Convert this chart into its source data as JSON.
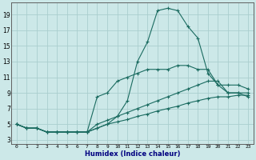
{
  "xlabel": "Humidex (Indice chaleur)",
  "background_color": "#cce8e8",
  "grid_color": "#aacece",
  "line_color": "#1a6b60",
  "xlim": [
    -0.5,
    23.5
  ],
  "ylim": [
    2.5,
    20.5
  ],
  "xticks": [
    0,
    1,
    2,
    3,
    4,
    5,
    6,
    7,
    8,
    9,
    10,
    11,
    12,
    13,
    14,
    15,
    16,
    17,
    18,
    19,
    20,
    21,
    22,
    23
  ],
  "yticks": [
    3,
    5,
    7,
    9,
    11,
    13,
    15,
    17,
    19
  ],
  "line_main_x": [
    0,
    1,
    2,
    3,
    4,
    5,
    6,
    7,
    8,
    9,
    10,
    11,
    12,
    13,
    14,
    15,
    16,
    17,
    18,
    19,
    20,
    21,
    22,
    23
  ],
  "line_main_y": [
    5,
    4.5,
    4.5,
    4,
    4,
    4,
    4,
    4,
    4.5,
    5,
    6,
    8,
    13,
    15.5,
    19.5,
    19.8,
    19.5,
    17.5,
    16,
    11.5,
    10,
    9,
    9,
    8.5
  ],
  "line_top_x": [
    0,
    1,
    2,
    3,
    4,
    5,
    6,
    7,
    8,
    9,
    10,
    11,
    12,
    13,
    14,
    15,
    16,
    17,
    18,
    19,
    20,
    21,
    22,
    23
  ],
  "line_top_y": [
    5,
    4.5,
    4.5,
    4,
    4,
    4,
    4,
    4,
    8.5,
    9,
    10.5,
    11,
    11.5,
    12,
    12,
    12,
    12.5,
    12.5,
    12,
    12,
    10,
    10,
    10,
    9.5
  ],
  "line_mid_x": [
    0,
    1,
    2,
    3,
    4,
    5,
    6,
    7,
    8,
    9,
    10,
    11,
    12,
    13,
    14,
    15,
    16,
    17,
    18,
    19,
    20,
    21,
    22,
    23
  ],
  "line_mid_y": [
    5,
    4.5,
    4.5,
    4,
    4,
    4,
    4,
    4,
    5,
    5.5,
    6,
    6.5,
    7,
    7.5,
    8,
    8.5,
    9,
    9.5,
    10,
    10.5,
    10.5,
    9,
    9,
    9
  ],
  "line_bot_x": [
    0,
    1,
    2,
    3,
    4,
    5,
    6,
    7,
    8,
    9,
    10,
    11,
    12,
    13,
    14,
    15,
    16,
    17,
    18,
    19,
    20,
    21,
    22,
    23
  ],
  "line_bot_y": [
    5,
    4.5,
    4.5,
    4,
    4,
    4,
    4,
    4,
    4.5,
    5,
    5.3,
    5.6,
    6,
    6.3,
    6.7,
    7,
    7.3,
    7.7,
    8,
    8.3,
    8.5,
    8.5,
    8.7,
    8.7
  ]
}
